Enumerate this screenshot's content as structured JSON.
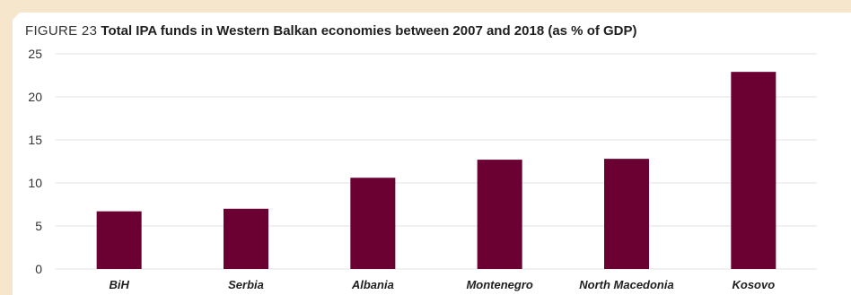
{
  "figure": {
    "label": "FIGURE 23",
    "title": "Total IPA funds in Western Balkan economies between 2007 and 2018 (as % of GDP)"
  },
  "colors": {
    "bar": "#6b0032",
    "background": "#f6e7cc",
    "gridline": "#e3e3e3"
  },
  "chart_data": {
    "type": "bar",
    "title": "Total IPA funds in Western Balkan economies between 2007 and 2018 (as % of GDP)",
    "categories": [
      "BiH",
      "Serbia",
      "Albania",
      "Montenegro",
      "North Macedonia",
      "Kosovo"
    ],
    "values": [
      6.7,
      7.0,
      10.6,
      12.7,
      12.8,
      22.9
    ],
    "xlabel": "",
    "ylabel": "",
    "ylim": [
      0,
      25
    ],
    "yticks": [
      0,
      5,
      10,
      15,
      20,
      25
    ],
    "grid": true,
    "legend": "none"
  }
}
